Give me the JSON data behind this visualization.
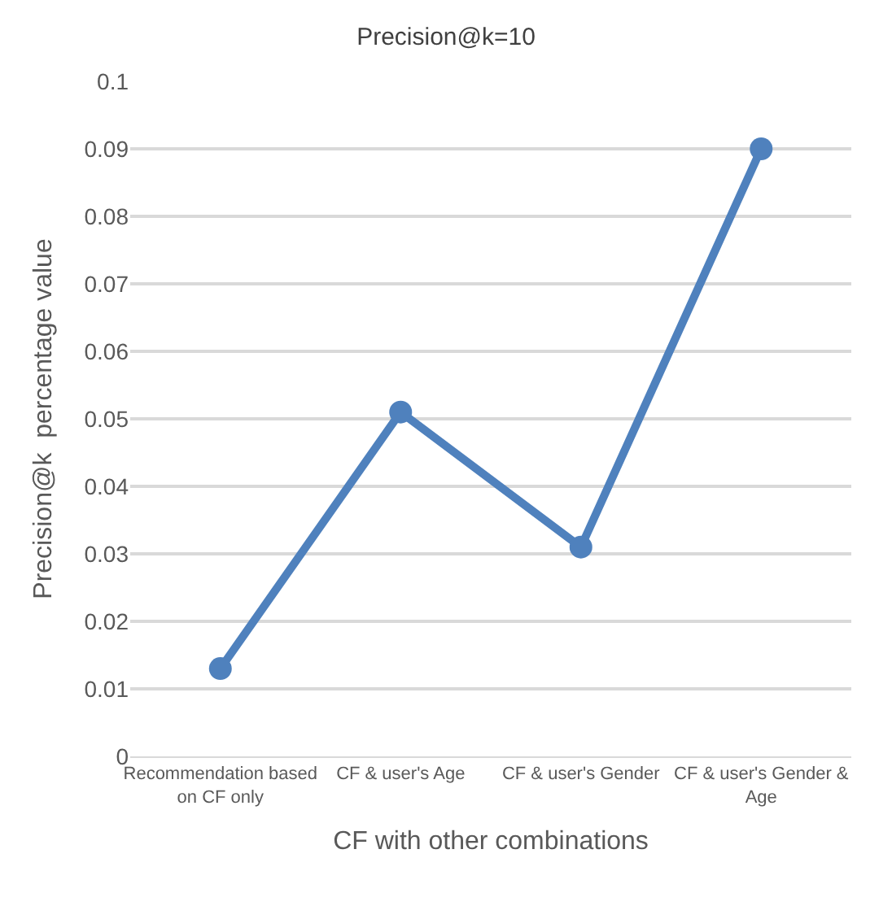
{
  "chart_data": {
    "type": "line",
    "title": "Precision@k=10",
    "xlabel": "CF with other combinations",
    "ylabel": "Precision@k  percentage value",
    "categories": [
      "Recommendation based on CF only",
      "CF & user's Age",
      "CF & user's Gender",
      "CF & user's Gender & Age"
    ],
    "series": [
      {
        "color": "#4f81bd",
        "values": [
          0.013,
          0.051,
          0.031,
          0.09
        ]
      }
    ],
    "ylim": [
      0,
      0.1
    ],
    "yticks": [
      0,
      0.01,
      0.02,
      0.03,
      0.04,
      0.05,
      0.06,
      0.07,
      0.08,
      0.09,
      0.1
    ],
    "grid": "y",
    "marker": "circle",
    "line_style": "solid"
  }
}
